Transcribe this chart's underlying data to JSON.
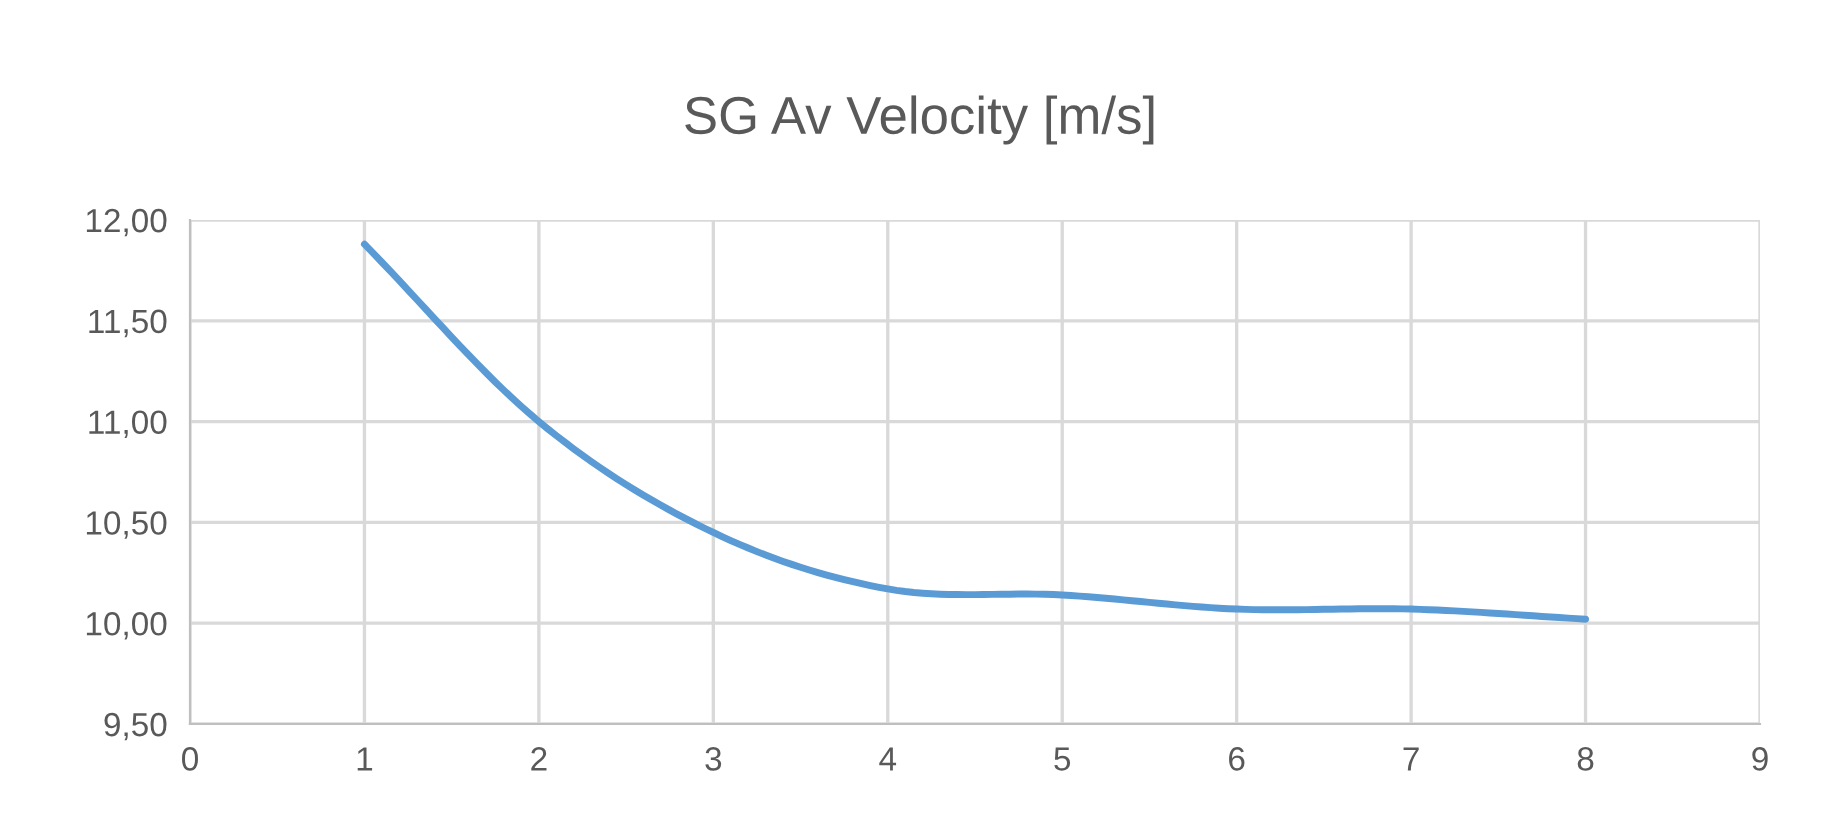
{
  "chart_data": {
    "type": "line",
    "title": "SG Av Velocity [m/s]",
    "x": [
      1,
      2,
      3,
      4,
      5,
      6,
      7,
      8
    ],
    "series": [
      {
        "color": "#5b9bd5",
        "values": [
          11.88,
          11.0,
          10.45,
          10.17,
          10.14,
          10.07,
          10.07,
          10.02
        ]
      }
    ],
    "xlim": [
      0,
      9
    ],
    "xticks": [
      0,
      1,
      2,
      3,
      4,
      5,
      6,
      7,
      8,
      9
    ],
    "ylim": [
      9.5,
      12.0
    ],
    "yticks": [
      {
        "value": 9.5,
        "label": "9,50"
      },
      {
        "value": 10.0,
        "label": "10,00"
      },
      {
        "value": 10.5,
        "label": "10,50"
      },
      {
        "value": 11.0,
        "label": "11,00"
      },
      {
        "value": 11.5,
        "label": "11,50"
      },
      {
        "value": 12.0,
        "label": "12,00"
      }
    ],
    "grid": true,
    "marker": "none",
    "line_style": "solid"
  }
}
